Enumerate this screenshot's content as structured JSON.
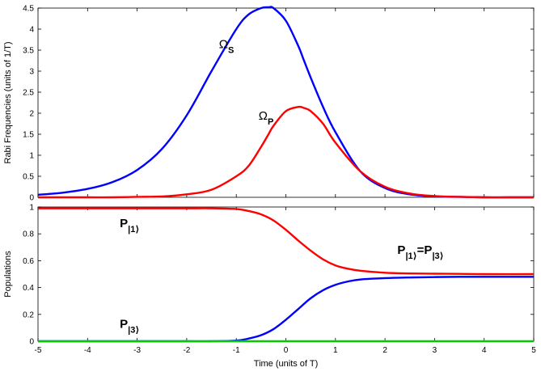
{
  "chart_data": [
    {
      "type": "line",
      "title": "",
      "xlabel": "",
      "ylabel": "Rabi Frequencies (units of 1/T)",
      "xlim": [
        -5,
        5
      ],
      "ylim": [
        0,
        4.5
      ],
      "xticks": [],
      "yticks": [
        "0",
        "0.5",
        "1",
        "1.5",
        "2",
        "2.5",
        "3",
        "3.5",
        "4",
        "4.5"
      ],
      "grid": false,
      "x": [
        -5,
        -4.5,
        -4,
        -3.5,
        -3,
        -2.5,
        -2,
        -1.5,
        -1,
        -0.75,
        -0.5,
        -0.35,
        -0.25,
        0,
        0.25,
        0.35,
        0.5,
        0.75,
        1,
        1.5,
        2,
        2.5,
        3,
        3.5,
        4,
        4.5,
        5
      ],
      "series": [
        {
          "name": "",
          "color": "#0000ff",
          "values": [
            0.06,
            0.11,
            0.2,
            0.36,
            0.65,
            1.15,
            1.95,
            3.0,
            4.0,
            4.35,
            4.5,
            4.52,
            4.5,
            4.2,
            3.6,
            3.3,
            2.85,
            2.15,
            1.55,
            0.62,
            0.22,
            0.07,
            0.02,
            0.01,
            0.0,
            0.0,
            0.0
          ]
        },
        {
          "name": "",
          "color": "#ff0000",
          "values": [
            0.0,
            0.0,
            0.0,
            0.0,
            0.01,
            0.02,
            0.07,
            0.18,
            0.5,
            0.75,
            1.2,
            1.5,
            1.7,
            2.05,
            2.15,
            2.13,
            2.05,
            1.75,
            1.3,
            0.62,
            0.25,
            0.09,
            0.03,
            0.01,
            0.0,
            0.0,
            0.0
          ]
        }
      ],
      "annotations": [
        {
          "text": "Ω",
          "sub": "S",
          "x": -1.35,
          "y": 3.55
        },
        {
          "text": "Ω",
          "sub": "P",
          "x": -0.55,
          "y": 1.85
        }
      ]
    },
    {
      "type": "line",
      "title": "",
      "xlabel": "Time (units of T)",
      "ylabel": "Populations",
      "xlim": [
        -5,
        5
      ],
      "ylim": [
        0,
        1
      ],
      "xticks": [
        "-5",
        "-4",
        "-3",
        "-2",
        "-1",
        "0",
        "1",
        "2",
        "3",
        "4",
        "5"
      ],
      "yticks": [
        "0",
        "0.2",
        "0.4",
        "0.6",
        "0.8",
        "1"
      ],
      "grid": false,
      "x": [
        -5,
        -4,
        -3,
        -2,
        -1.5,
        -1,
        -0.75,
        -0.5,
        -0.25,
        0,
        0.25,
        0.5,
        0.75,
        1,
        1.25,
        1.5,
        2,
        2.5,
        3,
        3.5,
        4,
        5
      ],
      "series": [
        {
          "name": "",
          "color": "#ff0000",
          "values": [
            0.99,
            0.99,
            0.99,
            0.99,
            0.99,
            0.985,
            0.97,
            0.945,
            0.9,
            0.83,
            0.75,
            0.675,
            0.61,
            0.565,
            0.54,
            0.525,
            0.51,
            0.505,
            0.503,
            0.502,
            0.5,
            0.5
          ]
        },
        {
          "name": "",
          "color": "#0000ff",
          "values": [
            0.0,
            0.0,
            0.0,
            0.0,
            0.0,
            0.005,
            0.02,
            0.045,
            0.09,
            0.16,
            0.24,
            0.32,
            0.38,
            0.42,
            0.445,
            0.46,
            0.47,
            0.475,
            0.478,
            0.48,
            0.48,
            0.48
          ]
        },
        {
          "name": "",
          "color": "#00cc00",
          "values": [
            0.0,
            0.0,
            0.0,
            0.0,
            0.0,
            0.0,
            0.0,
            0.0,
            0.0,
            0.0,
            0.0,
            0.0,
            0.0,
            0.0,
            0.0,
            0.0,
            0.0,
            0.0,
            0.0,
            0.0,
            0.0,
            0.0
          ]
        }
      ],
      "annotations": [
        {
          "text": "P",
          "sub": "|1⟩",
          "x": -3.35,
          "y": 0.85
        },
        {
          "text": "P",
          "sub": "|3⟩",
          "x": -3.35,
          "y": 0.1
        },
        {
          "text": "P",
          "sub": "|1⟩",
          "tail": "=P",
          "tail_sub": "|3⟩",
          "x": 2.25,
          "y": 0.65
        }
      ]
    }
  ]
}
